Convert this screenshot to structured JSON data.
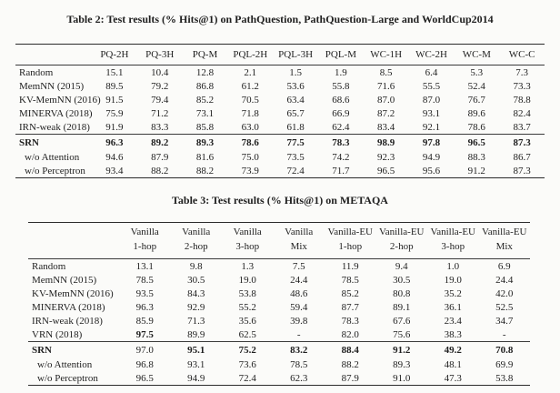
{
  "table2": {
    "title": "Table 2: Test results (% Hits@1) on PathQuestion, PathQuestion-Large and WorldCup2014",
    "columns": [
      "PQ-2H",
      "PQ-3H",
      "PQ-M",
      "PQL-2H",
      "PQL-3H",
      "PQL-M",
      "WC-1H",
      "WC-2H",
      "WC-M",
      "WC-C"
    ],
    "sections": [
      {
        "rows": [
          {
            "label": "Random",
            "values": [
              "15.1",
              "10.4",
              "12.8",
              "2.1",
              "1.5",
              "1.9",
              "8.5",
              "6.4",
              "5.3",
              "7.3"
            ]
          },
          {
            "label": "MemNN (2015)",
            "values": [
              "89.5",
              "79.2",
              "86.8",
              "61.2",
              "53.6",
              "55.8",
              "71.6",
              "55.5",
              "52.4",
              "73.3"
            ]
          },
          {
            "label": "KV-MemNN (2016)",
            "values": [
              "91.5",
              "79.4",
              "85.2",
              "70.5",
              "63.4",
              "68.6",
              "87.0",
              "87.0",
              "76.7",
              "78.8"
            ]
          },
          {
            "label": "MINERVA (2018)",
            "values": [
              "75.9",
              "71.2",
              "73.1",
              "71.8",
              "65.7",
              "66.9",
              "87.2",
              "93.1",
              "89.6",
              "82.4"
            ]
          },
          {
            "label": "IRN-weak (2018)",
            "values": [
              "91.9",
              "83.3",
              "85.8",
              "63.0",
              "61.8",
              "62.4",
              "83.4",
              "92.1",
              "78.6",
              "83.7"
            ]
          }
        ]
      },
      {
        "rows": [
          {
            "label": "SRN",
            "label_bold": true,
            "bold_values": [
              0,
              1,
              2,
              3,
              4,
              5,
              6,
              7,
              8,
              9
            ],
            "values": [
              "96.3",
              "89.2",
              "89.3",
              "78.6",
              "77.5",
              "78.3",
              "98.9",
              "97.8",
              "96.5",
              "87.3"
            ]
          },
          {
            "label": "w/o Attention",
            "indent": true,
            "values": [
              "94.6",
              "87.9",
              "81.6",
              "75.0",
              "73.5",
              "74.2",
              "92.3",
              "94.9",
              "88.3",
              "86.7"
            ]
          },
          {
            "label": "w/o Perceptron",
            "indent": true,
            "values": [
              "93.4",
              "88.2",
              "88.2",
              "73.9",
              "72.4",
              "71.7",
              "96.5",
              "95.6",
              "91.2",
              "87.3"
            ]
          }
        ]
      }
    ]
  },
  "table3": {
    "title": "Table 3: Test results (% Hits@1) on METAQA",
    "columns": [
      {
        "line1": "Vanilla",
        "line2": "1-hop"
      },
      {
        "line1": "Vanilla",
        "line2": "2-hop"
      },
      {
        "line1": "Vanilla",
        "line2": "3-hop"
      },
      {
        "line1": "Vanilla",
        "line2": "Mix"
      },
      {
        "line1": "Vanilla-EU",
        "line2": "1-hop"
      },
      {
        "line1": "Vanilla-EU",
        "line2": "2-hop"
      },
      {
        "line1": "Vanilla-EU",
        "line2": "3-hop"
      },
      {
        "line1": "Vanilla-EU",
        "line2": "Mix"
      }
    ],
    "sections": [
      {
        "rows": [
          {
            "label": "Random",
            "values": [
              "13.1",
              "9.8",
              "1.3",
              "7.5",
              "11.9",
              "9.4",
              "1.0",
              "6.9"
            ]
          },
          {
            "label": "MemNN (2015)",
            "values": [
              "78.5",
              "30.5",
              "19.0",
              "24.4",
              "78.5",
              "30.5",
              "19.0",
              "24.4"
            ]
          },
          {
            "label": "KV-MemNN (2016)",
            "values": [
              "93.5",
              "84.3",
              "53.8",
              "48.6",
              "85.2",
              "80.8",
              "35.2",
              "42.0"
            ]
          },
          {
            "label": "MINERVA (2018)",
            "values": [
              "96.3",
              "92.9",
              "55.2",
              "59.4",
              "87.7",
              "89.1",
              "36.1",
              "52.5"
            ]
          },
          {
            "label": "IRN-weak (2018)",
            "values": [
              "85.9",
              "71.3",
              "35.6",
              "39.8",
              "78.3",
              "67.6",
              "23.4",
              "34.7"
            ]
          },
          {
            "label": "VRN (2018)",
            "bold_values": [
              0
            ],
            "values": [
              "97.5",
              "89.9",
              "62.5",
              "-",
              "82.0",
              "75.6",
              "38.3",
              "-"
            ]
          }
        ]
      },
      {
        "rows": [
          {
            "label": "SRN",
            "label_bold": true,
            "bold_values": [
              1,
              2,
              3,
              4,
              5,
              6,
              7
            ],
            "values": [
              "97.0",
              "95.1",
              "75.2",
              "83.2",
              "88.4",
              "91.2",
              "49.2",
              "70.8"
            ]
          },
          {
            "label": "w/o Attention",
            "indent": true,
            "values": [
              "96.8",
              "93.1",
              "73.6",
              "78.5",
              "88.2",
              "89.3",
              "48.1",
              "69.9"
            ]
          },
          {
            "label": "w/o Perceptron",
            "indent": true,
            "values": [
              "96.5",
              "94.9",
              "72.4",
              "62.3",
              "87.9",
              "91.0",
              "47.3",
              "53.8"
            ]
          }
        ]
      }
    ]
  }
}
